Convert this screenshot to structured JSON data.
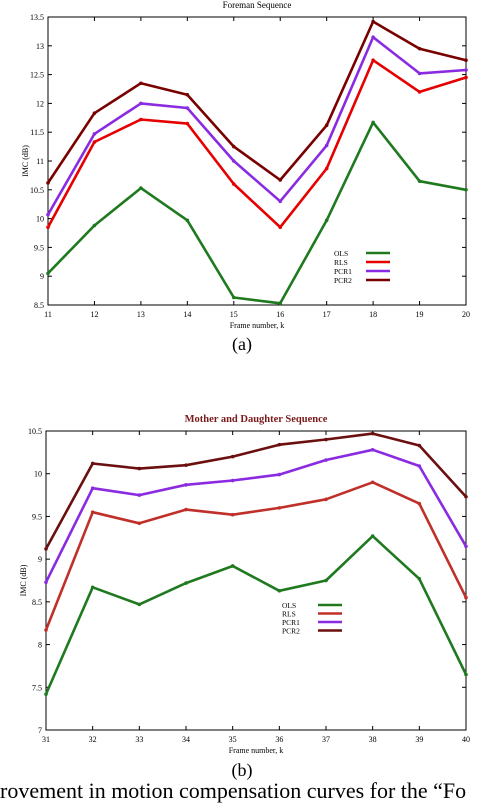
{
  "chart_data": [
    {
      "type": "line",
      "title": "Foreman Sequence",
      "xlabel": "Frame number, k",
      "ylabel": "IMC (dB)",
      "x": [
        11,
        12,
        13,
        14,
        15,
        16,
        17,
        18,
        19,
        20
      ],
      "xlim": [
        11,
        20
      ],
      "ylim": [
        8.5,
        13.5
      ],
      "x_ticks": [
        "11",
        "12",
        "13",
        "14",
        "15",
        "16",
        "17",
        "18",
        "19",
        "20"
      ],
      "y_ticks": [
        "8.5",
        "9",
        "9.5",
        "10",
        "10.5",
        "11",
        "11.5",
        "12",
        "12.5",
        "13",
        "13.5"
      ],
      "legend_position": "lower-right",
      "grid": false,
      "series": [
        {
          "name": "OLS",
          "color": "#1f7a1f",
          "values": [
            9.05,
            9.88,
            10.53,
            9.97,
            8.63,
            8.53,
            9.97,
            11.67,
            10.65,
            10.5
          ]
        },
        {
          "name": "RLS",
          "color": "#e60000",
          "values": [
            9.85,
            11.33,
            11.72,
            11.65,
            10.6,
            9.85,
            10.87,
            12.75,
            12.2,
            12.45
          ]
        },
        {
          "name": "PCR1",
          "color": "#8a2be2",
          "values": [
            10.07,
            11.47,
            12.0,
            11.92,
            11.0,
            10.3,
            11.27,
            13.15,
            12.52,
            12.58
          ]
        },
        {
          "name": "PCR2",
          "color": "#7a0000",
          "values": [
            10.62,
            11.83,
            12.35,
            12.15,
            11.25,
            10.67,
            11.62,
            13.42,
            12.95,
            12.75
          ]
        }
      ]
    },
    {
      "type": "line",
      "title": "Mother and Daughter  Sequence",
      "xlabel": "Frame number, k",
      "ylabel": "IMC (dB)",
      "x": [
        31,
        32,
        33,
        34,
        35,
        36,
        37,
        38,
        39,
        40
      ],
      "xlim": [
        31,
        40
      ],
      "ylim": [
        7,
        10.5
      ],
      "x_ticks": [
        "31",
        "32",
        "33",
        "34",
        "35",
        "36",
        "37",
        "38",
        "39",
        "40"
      ],
      "y_ticks": [
        "7",
        "7.5",
        "8",
        "8.5",
        "9",
        "9.5",
        "10",
        "10.5"
      ],
      "legend_position": "center",
      "grid": false,
      "series": [
        {
          "name": "OLS",
          "color": "#1f7a1f",
          "values": [
            7.42,
            8.67,
            8.47,
            8.72,
            8.92,
            8.63,
            8.75,
            9.27,
            8.77,
            7.65
          ]
        },
        {
          "name": "RLS",
          "color": "#c0302a",
          "values": [
            8.17,
            9.55,
            9.42,
            9.58,
            9.52,
            9.6,
            9.7,
            9.9,
            9.65,
            8.55
          ]
        },
        {
          "name": "PCR1",
          "color": "#8a2be2",
          "values": [
            8.73,
            9.83,
            9.75,
            9.87,
            9.92,
            9.99,
            10.16,
            10.28,
            10.09,
            9.15
          ]
        },
        {
          "name": "PCR2",
          "color": "#6b0f0f",
          "values": [
            9.12,
            10.12,
            10.06,
            10.1,
            10.2,
            10.34,
            10.4,
            10.47,
            10.33,
            9.73
          ]
        }
      ]
    }
  ],
  "labels": {
    "a": "(a)",
    "b": "(b)"
  },
  "caption": "rovement in motion compensation curves for the “Fo"
}
